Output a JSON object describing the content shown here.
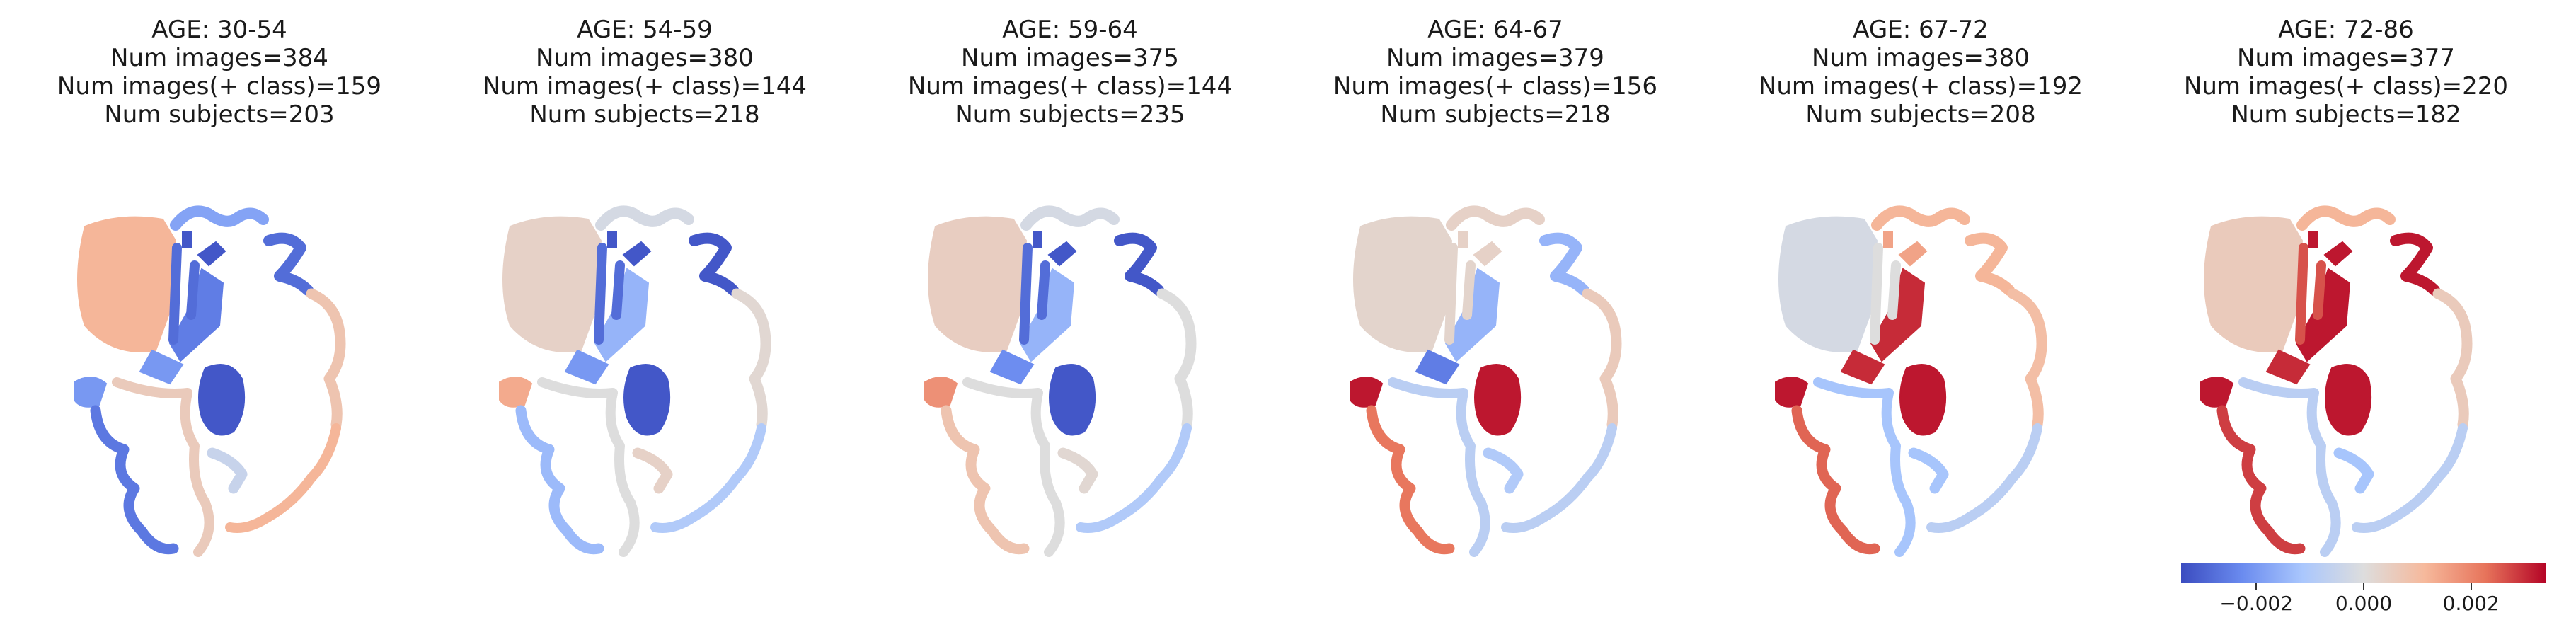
{
  "chart_data": [
    {
      "type": "heatmap",
      "title_lines": [
        "AGE: 30-54",
        "Num images=384",
        "Num images(+ class)=159",
        "Num subjects=203"
      ],
      "region_values": {
        "frontal": 0.0012,
        "striatum": -0.0025,
        "putamen_mid": -0.002,
        "thalamus": -0.0032,
        "caudate_left": -0.0032,
        "inner_strip": -0.0028,
        "cortex_top": -0.0018,
        "cortex_upper_right": -0.0028,
        "cortex_right": 0.0008,
        "cortex_right_lower": 0.0012,
        "temporal_pole": -0.002,
        "cortex_bottom_left": -0.0026,
        "cortex_bottom": 0.0006,
        "hippocampus": -0.0005
      }
    },
    {
      "type": "heatmap",
      "title_lines": [
        "AGE: 54-59",
        "Num images=380",
        "Num images(+ class)=144",
        "Num subjects=218"
      ],
      "region_values": {
        "frontal": 0.0004,
        "striatum": -0.0015,
        "putamen_mid": -0.002,
        "thalamus": -0.0032,
        "caudate_left": -0.0032,
        "inner_strip": -0.0028,
        "cortex_top": -0.0002,
        "cortex_upper_right": -0.0032,
        "cortex_right": 0.0002,
        "cortex_right_lower": -0.001,
        "temporal_pole": 0.0014,
        "cortex_bottom_left": -0.0014,
        "cortex_bottom": 0.0,
        "hippocampus": 0.0004
      }
    },
    {
      "type": "heatmap",
      "title_lines": [
        "AGE: 59-64",
        "Num images=375",
        "Num images(+ class)=144",
        "Num subjects=235"
      ],
      "region_values": {
        "frontal": 0.0005,
        "striatum": -0.0015,
        "putamen_mid": -0.0022,
        "thalamus": -0.0032,
        "caudate_left": -0.0032,
        "inner_strip": -0.0028,
        "cortex_top": -0.0002,
        "cortex_upper_right": -0.0032,
        "cortex_right": 0.0,
        "cortex_right_lower": -0.001,
        "temporal_pole": 0.0018,
        "cortex_bottom_left": 0.0008,
        "cortex_bottom": 0.0,
        "hippocampus": 0.0002
      }
    },
    {
      "type": "heatmap",
      "title_lines": [
        "AGE: 64-67",
        "Num images=379",
        "Num images(+ class)=156",
        "Num subjects=218"
      ],
      "region_values": {
        "frontal": 0.0003,
        "striatum": -0.0015,
        "putamen_mid": -0.0025,
        "thalamus": 0.0032,
        "caudate_left": 0.0004,
        "inner_strip": 0.0003,
        "cortex_top": 0.0004,
        "cortex_upper_right": -0.0015,
        "cortex_right": 0.0006,
        "cortex_right_lower": -0.0008,
        "temporal_pole": 0.0032,
        "cortex_bottom_left": 0.0022,
        "cortex_bottom": -0.0008,
        "hippocampus": -0.001
      }
    },
    {
      "type": "heatmap",
      "title_lines": [
        "AGE: 67-72",
        "Num images=380",
        "Num images(+ class)=192",
        "Num subjects=208"
      ],
      "region_values": {
        "frontal": -0.0002,
        "striatum": 0.003,
        "putamen_mid": 0.003,
        "thalamus": 0.0032,
        "caudate_left": 0.0015,
        "inner_strip": 0.0,
        "cortex_top": 0.0012,
        "cortex_upper_right": 0.0012,
        "cortex_right": 0.001,
        "cortex_right_lower": -0.0008,
        "temporal_pole": 0.0032,
        "cortex_bottom_left": 0.0024,
        "cortex_bottom": -0.0012,
        "hippocampus": -0.0012
      }
    },
    {
      "type": "heatmap",
      "title_lines": [
        "AGE: 72-86",
        "Num images=377",
        "Num images(+ class)=220",
        "Num subjects=182"
      ],
      "region_values": {
        "frontal": 0.0006,
        "striatum": 0.0032,
        "putamen_mid": 0.003,
        "thalamus": 0.0032,
        "caudate_left": 0.0032,
        "inner_strip": 0.0026,
        "cortex_top": 0.0012,
        "cortex_upper_right": 0.0032,
        "cortex_right": 0.0006,
        "cortex_right_lower": -0.0008,
        "temporal_pole": 0.0032,
        "cortex_bottom_left": 0.0028,
        "cortex_bottom": -0.0008,
        "hippocampus": -0.0012
      }
    }
  ],
  "colorbar": {
    "colormap": "coolwarm",
    "range": [
      -0.0034,
      0.0034
    ],
    "ticks": [
      -0.002,
      0.0,
      0.002
    ],
    "tick_labels": [
      "−0.002",
      "0.000",
      "0.002"
    ]
  }
}
